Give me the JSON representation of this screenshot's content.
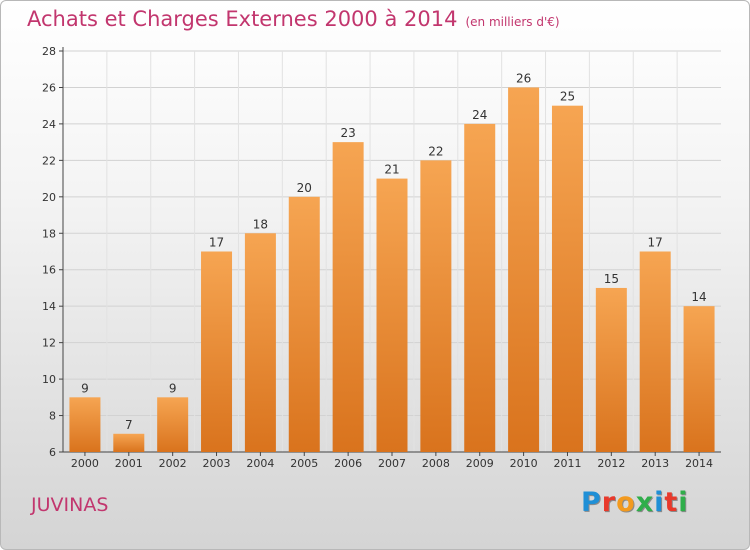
{
  "title": "Achats et Charges Externes 2000 à 2014",
  "title_unit": "(en milliers d'€)",
  "commune": "JUVINAS",
  "logo": {
    "letters": [
      "P",
      "r",
      "o",
      "x",
      "i",
      "t",
      "i"
    ],
    "colors": [
      "#1f8fd6",
      "#e8392b",
      "#f39a1e",
      "#2fae4a",
      "#1f8fd6",
      "#e8392b",
      "#2fae4a"
    ]
  },
  "chart_data": {
    "type": "bar",
    "title": "Achats et Charges Externes 2000 à 2014",
    "categories": [
      "2000",
      "2001",
      "2002",
      "2003",
      "2004",
      "2005",
      "2006",
      "2007",
      "2008",
      "2009",
      "2010",
      "2011",
      "2012",
      "2013",
      "2014"
    ],
    "values": [
      9,
      7,
      9,
      17,
      18,
      20,
      23,
      21,
      22,
      24,
      26,
      25,
      15,
      17,
      14
    ],
    "xlabel": "",
    "ylabel": "",
    "ylim": [
      6,
      28
    ],
    "yticks": [
      6,
      8,
      10,
      12,
      14,
      16,
      18,
      20,
      22,
      24,
      26,
      28
    ],
    "grid": true,
    "legend": "none",
    "bar_color_top": "#f6a552",
    "bar_color_bottom": "#d9731d"
  }
}
